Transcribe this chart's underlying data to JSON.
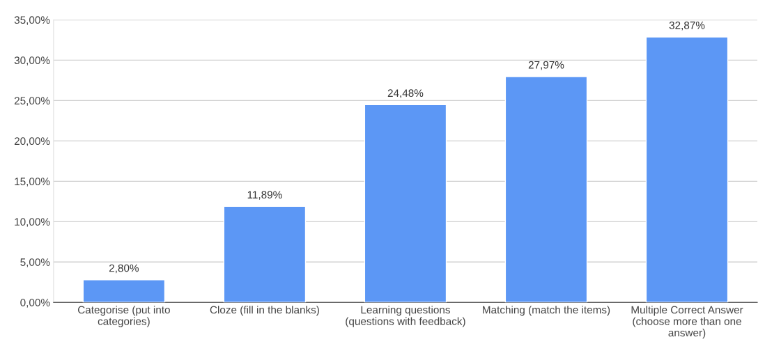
{
  "chart_data": {
    "type": "bar",
    "categories": [
      "Categorise (put into\ncategories)",
      "Cloze (fill in the blanks)",
      "Learning questions\n(questions with feedback)",
      "Matching (match the items)",
      "Multiple Correct Answer\n(choose more than one\nanswer)"
    ],
    "values": [
      2.8,
      11.89,
      24.48,
      27.97,
      32.87
    ],
    "value_labels": [
      "2,80%",
      "11,89%",
      "24,48%",
      "27,97%",
      "32,87%"
    ],
    "color": "#5c97f5",
    "ylim": [
      0,
      35
    ],
    "yticks": [
      {
        "value": 0,
        "label": "0,00%"
      },
      {
        "value": 5,
        "label": "5,00%"
      },
      {
        "value": 10,
        "label": "10,00%"
      },
      {
        "value": 15,
        "label": "15,00%"
      },
      {
        "value": 20,
        "label": "20,00%"
      },
      {
        "value": 25,
        "label": "25,00%"
      },
      {
        "value": 30,
        "label": "30,00%"
      },
      {
        "value": 35,
        "label": "35,00%"
      }
    ],
    "grid": "y"
  }
}
